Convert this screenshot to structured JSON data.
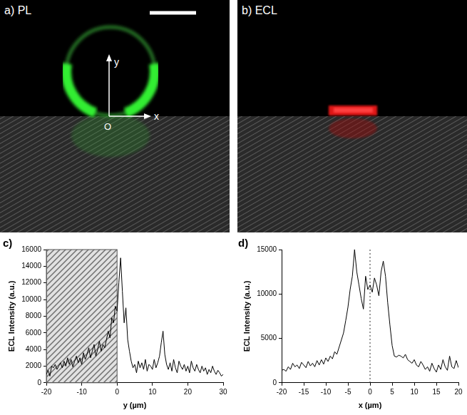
{
  "images": [
    {
      "panel": "a) PL",
      "axis_labels": {
        "x": "x",
        "y": "y",
        "origin": "O"
      }
    },
    {
      "panel": "b) ECL"
    }
  ],
  "chart_data": [
    {
      "type": "line",
      "panel": "c)",
      "x_label": "y (µm)",
      "y_label": "ECL Intensity (a.u.)",
      "xlim": [
        -20,
        30
      ],
      "xticks": [
        -20,
        -10,
        0,
        10,
        20,
        30
      ],
      "ylim": [
        0,
        16000
      ],
      "yticks": [
        0,
        2000,
        4000,
        6000,
        8000,
        10000,
        12000,
        14000,
        16000
      ],
      "grid": false,
      "shaded_region": [
        -20,
        0
      ],
      "x": [
        -20,
        -19.5,
        -19,
        -18.5,
        -18,
        -17.5,
        -17,
        -16.5,
        -16,
        -15.5,
        -15,
        -14.5,
        -14,
        -13.5,
        -13,
        -12.5,
        -12,
        -11.5,
        -11,
        -10.5,
        -10,
        -9.5,
        -9,
        -8.5,
        -8,
        -7.5,
        -7,
        -6.5,
        -6,
        -5.5,
        -5,
        -4.5,
        -4,
        -3.5,
        -3,
        -2.5,
        -2,
        -1.5,
        -1,
        -0.5,
        0,
        0.5,
        1,
        1.5,
        2,
        2.5,
        3,
        3.5,
        4,
        4.5,
        5,
        5.5,
        6,
        6.5,
        7,
        7.5,
        8,
        8.5,
        9,
        9.5,
        10,
        10.5,
        11,
        11.5,
        12,
        12.5,
        13,
        13.5,
        14,
        14.5,
        15,
        15.5,
        16,
        16.5,
        17,
        17.5,
        18,
        18.5,
        19,
        19.5,
        20,
        20.5,
        21,
        21.5,
        22,
        22.5,
        23,
        23.5,
        24,
        24.5,
        25,
        25.5,
        26,
        26.5,
        27,
        27.5,
        28,
        28.5,
        29,
        29.5,
        30
      ],
      "series": [
        {
          "color": "#000000",
          "values": [
            1000,
            1500,
            800,
            2000,
            1800,
            2200,
            1600,
            2000,
            2400,
            1800,
            2600,
            2000,
            3000,
            2200,
            2800,
            1900,
            2600,
            3200,
            2400,
            3000,
            2200,
            3600,
            2800,
            3400,
            4200,
            3000,
            3800,
            4600,
            3200,
            4000,
            5000,
            3800,
            4600,
            4200,
            5200,
            6200,
            5400,
            7800,
            7200,
            9200,
            8600,
            12000,
            15000,
            11000,
            7200,
            9000,
            5200,
            3800,
            2600,
            1800,
            2200,
            1200,
            2600,
            1800,
            2400,
            1600,
            2800,
            1400,
            2200,
            2000,
            1600,
            2800,
            1800,
            2400,
            3200,
            4800,
            6200,
            3400,
            2200,
            1600,
            2400,
            1400,
            2800,
            1800,
            1200,
            2600,
            2000,
            1600,
            2200,
            1400,
            2000,
            1200,
            2600,
            1800,
            1400,
            2200,
            1600,
            1200,
            2000,
            1400,
            1800,
            1000,
            1600,
            1200,
            2000,
            1400,
            1000,
            1500,
            1200,
            800,
            1000
          ]
        }
      ]
    },
    {
      "type": "line",
      "panel": "d)",
      "x_label": "x (µm)",
      "y_label": "ECL Intensity (a.u.)",
      "xlim": [
        -20,
        20
      ],
      "xticks": [
        -20,
        -15,
        -10,
        -5,
        0,
        5,
        10,
        15,
        20
      ],
      "ylim": [
        0,
        15000
      ],
      "yticks": [
        0,
        5000,
        10000,
        15000
      ],
      "grid": false,
      "reference_line_x": 0,
      "x": [
        -20,
        -19.5,
        -19,
        -18.5,
        -18,
        -17.5,
        -17,
        -16.5,
        -16,
        -15.5,
        -15,
        -14.5,
        -14,
        -13.5,
        -13,
        -12.5,
        -12,
        -11.5,
        -11,
        -10.5,
        -10,
        -9.5,
        -9,
        -8.5,
        -8,
        -7.5,
        -7,
        -6.5,
        -6,
        -5.5,
        -5,
        -4.5,
        -4,
        -3.5,
        -3,
        -2.5,
        -2,
        -1.5,
        -1,
        -0.5,
        0,
        0.5,
        1,
        1.5,
        2,
        2.5,
        3,
        3.5,
        4,
        4.5,
        5,
        5.5,
        6,
        6.5,
        7,
        7.5,
        8,
        8.5,
        9,
        9.5,
        10,
        10.5,
        11,
        11.5,
        12,
        12.5,
        13,
        13.5,
        14,
        14.5,
        15,
        15.5,
        16,
        16.5,
        17,
        17.5,
        18,
        18.5,
        19,
        19.5,
        20
      ],
      "series": [
        {
          "color": "#000000",
          "values": [
            1400,
            1500,
            1300,
            1800,
            1500,
            2200,
            1800,
            2000,
            1600,
            2300,
            2000,
            1700,
            2400,
            1900,
            2200,
            1800,
            2500,
            2000,
            2600,
            2100,
            2800,
            2400,
            3000,
            2700,
            3500,
            3200,
            4000,
            4800,
            5600,
            7000,
            8500,
            10500,
            12000,
            15000,
            12500,
            11000,
            9500,
            8300,
            12000,
            10500,
            11000,
            10200,
            11800,
            11000,
            9800,
            12500,
            13700,
            12000,
            9000,
            6500,
            4200,
            3000,
            2900,
            3100,
            3000,
            2800,
            3200,
            2600,
            2400,
            2200,
            2600,
            2000,
            1800,
            2400,
            2000,
            1500,
            1800,
            1300,
            2200,
            1600,
            1200,
            2000,
            1500,
            2600,
            1800,
            1400,
            3000,
            1800,
            1600,
            2500,
            1700
          ]
        }
      ]
    }
  ]
}
